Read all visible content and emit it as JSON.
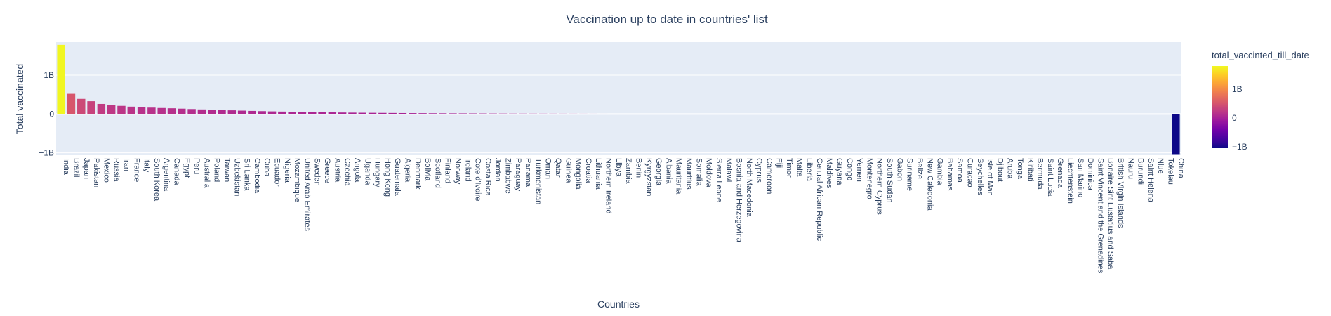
{
  "chart_data": {
    "type": "bar",
    "title": "Vaccination up to date in countries' list",
    "xlabel": "Countries",
    "ylabel": "Total vaccinated",
    "ylim": [
      -1.06,
      1.85
    ],
    "y_unit": "billions",
    "y_ticks": [
      {
        "value": -1,
        "label": "−1B"
      },
      {
        "value": 0,
        "label": "0"
      },
      {
        "value": 1,
        "label": "1B"
      }
    ],
    "legend": {
      "title": "total_vaccinted_till_date",
      "ticks": [
        {
          "value": -1,
          "label": "−1B"
        },
        {
          "value": 0,
          "label": "0"
        },
        {
          "value": 1,
          "label": "1B"
        }
      ],
      "range": [
        -1.05,
        1.8
      ],
      "colors": [
        "#0d0887",
        "#46039f",
        "#7201a8",
        "#9c179e",
        "#bd3786",
        "#d8576b",
        "#ed7953",
        "#fb9f3a",
        "#fdca26",
        "#f0f921"
      ]
    },
    "grid": true,
    "categories": [
      "India",
      "Brazil",
      "Japan",
      "Pakistan",
      "Mexico",
      "Russia",
      "Iran",
      "France",
      "Italy",
      "South Korea",
      "Argentina",
      "Canada",
      "Egypt",
      "Peru",
      "Australia",
      "Poland",
      "Taiwan",
      "Uzbekistan",
      "Sri Lanka",
      "Cambodia",
      "Cuba",
      "Ecuador",
      "Nigeria",
      "Mozambique",
      "United Arab Emirates",
      "Sweden",
      "Greece",
      "Austria",
      "Czechia",
      "Angola",
      "Uganda",
      "Hungary",
      "Hong Kong",
      "Guatemala",
      "Algeria",
      "Denmark",
      "Bolivia",
      "Scotland",
      "Finland",
      "Norway",
      "Ireland",
      "Cote d'Ivoire",
      "Costa Rica",
      "Jordan",
      "Zimbabwe",
      "Paraguay",
      "Panama",
      "Turkmenistan",
      "Oman",
      "Qatar",
      "Guinea",
      "Mongolia",
      "Croatia",
      "Lithuania",
      "Northern Ireland",
      "Libya",
      "Zambia",
      "Benin",
      "Kyrgyzstan",
      "Georgia",
      "Albania",
      "Mauritania",
      "Mauritius",
      "Somalia",
      "Moldova",
      "Sierra Leone",
      "Malawi",
      "Bosnia and Herzegovina",
      "North Macedonia",
      "Cyprus",
      "Cameroon",
      "Fiji",
      "Timor",
      "Malta",
      "Liberia",
      "Central African Republic",
      "Maldives",
      "Guyana",
      "Congo",
      "Yemen",
      "Montenegro",
      "Northern Cyprus",
      "South Sudan",
      "Gabon",
      "Suriname",
      "Belize",
      "New Caledonia",
      "Gambia",
      "Bahamas",
      "Samoa",
      "Curacao",
      "Seychelles",
      "Isle of Man",
      "Djibouti",
      "Aruba",
      "Tonga",
      "Kiribati",
      "Bermuda",
      "Saint Lucia",
      "Grenada",
      "Liechtenstein",
      "San Marino",
      "Dominica",
      "Saint Vincent and the Grenadines",
      "Bonaire Sint Eustatius and Saba",
      "British Virgin Islands",
      "Nauru",
      "Burundi",
      "Saint Helena",
      "Niue",
      "Tokelau",
      "China"
    ],
    "values": [
      1.78,
      0.52,
      0.39,
      0.33,
      0.26,
      0.23,
      0.21,
      0.19,
      0.17,
      0.165,
      0.155,
      0.148,
      0.138,
      0.128,
      0.118,
      0.112,
      0.102,
      0.095,
      0.087,
      0.08,
      0.074,
      0.068,
      0.063,
      0.058,
      0.054,
      0.05,
      0.046,
      0.042,
      0.039,
      0.036,
      0.033,
      0.031,
      0.029,
      0.027,
      0.025,
      0.023,
      0.021,
      0.019,
      0.018,
      0.017,
      0.016,
      0.015,
      0.014,
      0.013,
      0.012,
      0.011,
      0.0105,
      0.01,
      0.0095,
      0.009,
      0.0085,
      0.008,
      0.0075,
      0.007,
      0.0066,
      0.0062,
      0.0058,
      0.0055,
      0.0052,
      0.0049,
      0.0046,
      0.0043,
      0.004,
      0.0037,
      0.0035,
      0.0033,
      0.003,
      0.0028,
      0.0026,
      0.0024,
      0.0022,
      0.002,
      0.0018,
      0.0017,
      0.0016,
      0.0015,
      0.0014,
      0.0013,
      0.0012,
      0.0011,
      0.001,
      0.0009,
      0.00085,
      0.0008,
      0.00075,
      0.0007,
      0.00065,
      0.0006,
      0.00055,
      0.0005,
      0.00045,
      0.0004,
      0.00035,
      0.0003,
      0.00028,
      0.00025,
      0.00022,
      0.0002,
      0.00018,
      0.00016,
      0.00014,
      0.00012,
      0.0001,
      9e-05,
      8e-05,
      7e-05,
      6e-05,
      5e-05,
      3e-05,
      1e-05,
      5e-06,
      -1.05
    ]
  }
}
